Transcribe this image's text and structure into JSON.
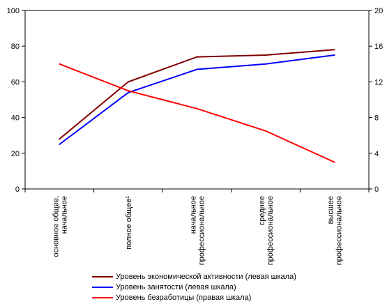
{
  "chart_data": {
    "type": "line",
    "categories": [
      [
        "основное общее,",
        "начальное"
      ],
      [
        "полное общее¹"
      ],
      [
        "начальное",
        "профессиональное"
      ],
      [
        "среднее",
        "профессиональное"
      ],
      [
        "высшее",
        "профессиональное"
      ]
    ],
    "left_axis": {
      "min": 0,
      "max": 100,
      "ticks": [
        "0",
        "20",
        "40",
        "60",
        "80",
        "100"
      ]
    },
    "right_axis": {
      "min": 0,
      "max": 20,
      "ticks": [
        "0",
        "4",
        "8",
        "12",
        "16",
        "20"
      ]
    },
    "series": [
      {
        "name": "Уровень экономической активности (левая шкала)",
        "axis": "left",
        "color": "#800000",
        "values": [
          28,
          60,
          74,
          75,
          78
        ]
      },
      {
        "name": "Уровень занятости (левая шкала)",
        "axis": "left",
        "color": "#0000FF",
        "values": [
          25,
          54,
          67,
          70,
          75
        ]
      },
      {
        "name": "Уровень безработицы (правая шкала)",
        "axis": "right",
        "color": "#FF0000",
        "values": [
          14,
          11,
          9,
          6.5,
          3
        ]
      }
    ],
    "grid": false,
    "legend": "bottom"
  }
}
